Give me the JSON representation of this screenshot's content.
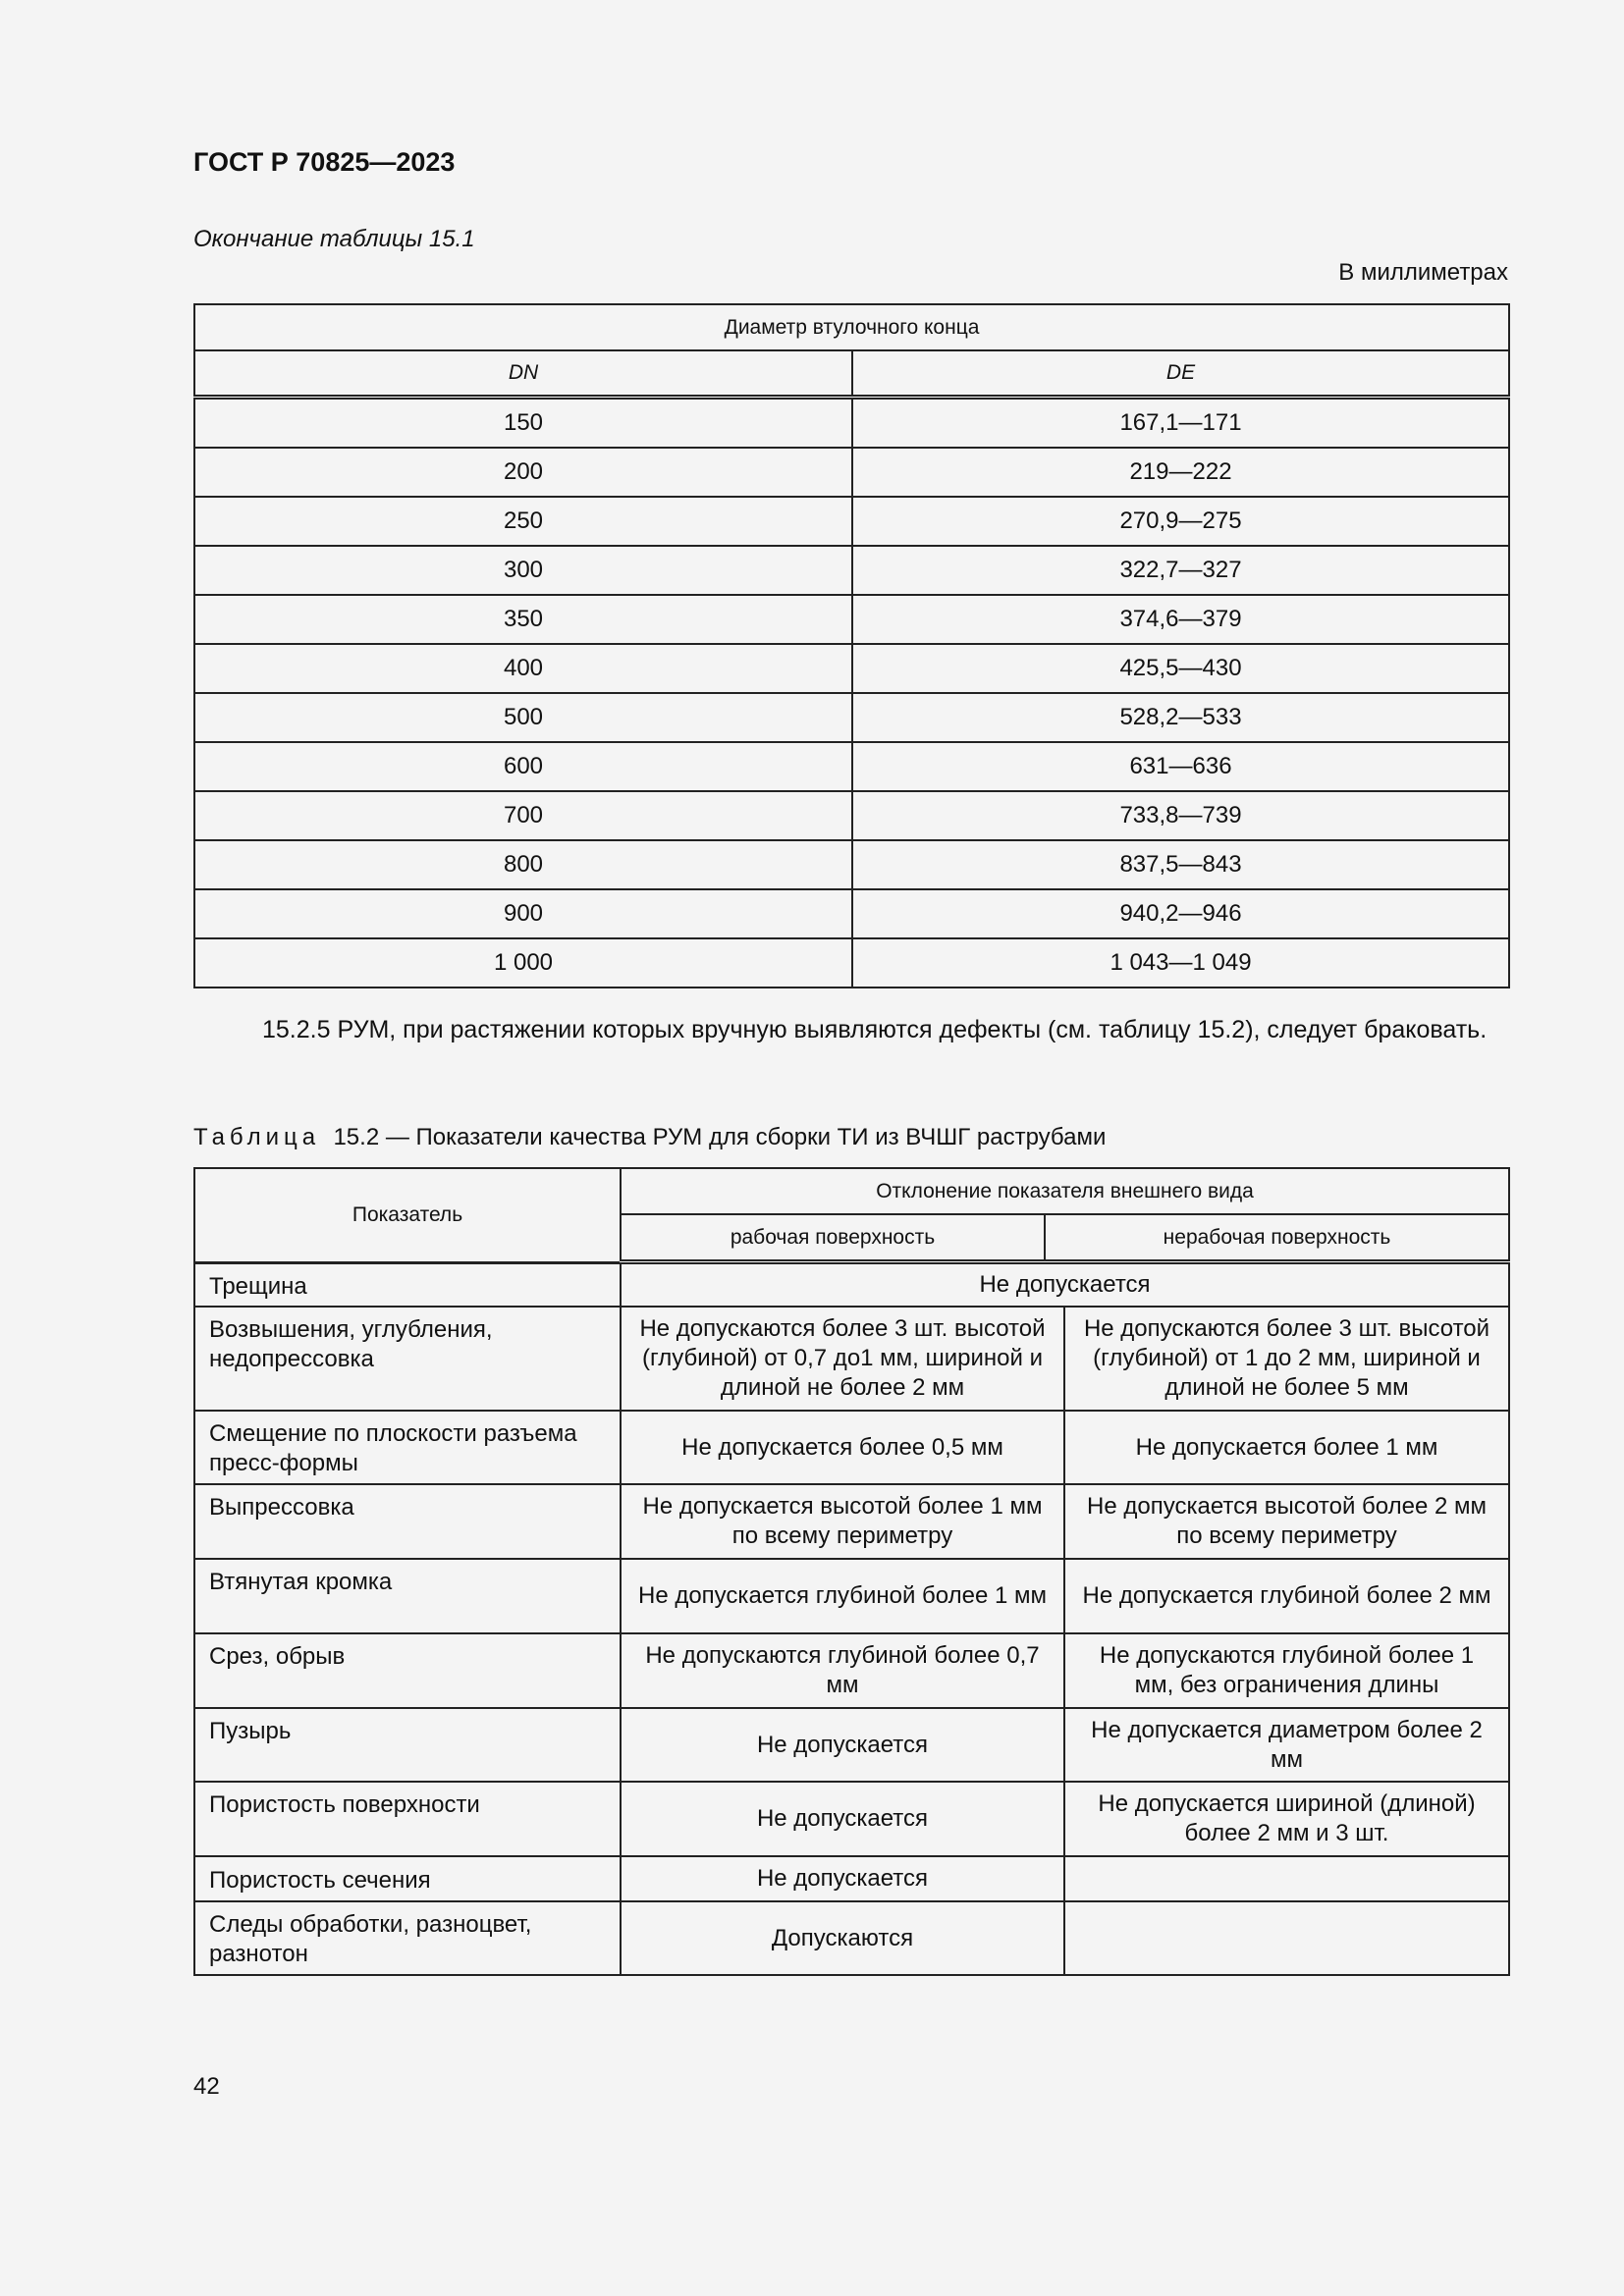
{
  "header": {
    "doc_id": "ГОСТ Р 70825—2023"
  },
  "table1": {
    "continuation": "Окончание таблицы 15.1",
    "units": "В миллиметрах",
    "group_header": "Диаметр втулочного конца",
    "columns": [
      "DN",
      "DE"
    ],
    "rows": [
      [
        "150",
        "167,1—171"
      ],
      [
        "200",
        "219—222"
      ],
      [
        "250",
        "270,9—275"
      ],
      [
        "300",
        "322,7—327"
      ],
      [
        "350",
        "374,6—379"
      ],
      [
        "400",
        "425,5—430"
      ],
      [
        "500",
        "528,2—533"
      ],
      [
        "600",
        "631—636"
      ],
      [
        "700",
        "733,8—739"
      ],
      [
        "800",
        "837,5—843"
      ],
      [
        "900",
        "940,2—946"
      ],
      [
        "1 000",
        "1 043—1 049"
      ]
    ]
  },
  "paragraph": "15.2.5 РУМ, при растяжении которых вручную выявляются дефекты (см. таблицу 15.2), следует браковать.",
  "table2": {
    "caption_prefix": "Таблица",
    "caption": "15.2 — Показатели качества РУМ для сборки ТИ из ВЧШГ раструбами",
    "col_indicator": "Показатель",
    "col_group": "Отклонение показателя внешнего вида",
    "col_working": "рабочая поверхность",
    "col_nonworking": "нерабочая поверхность",
    "rows": [
      {
        "name": "Трещина",
        "merged": "Не допускается"
      },
      {
        "name": "Возвышения, углубления, недопрессовка",
        "working": "Не допускаются более 3 шт. высотой (глубиной) от 0,7 до1 мм, шириной и длиной не более 2 мм",
        "nonworking": "Не допускаются более 3 шт. высотой (глубиной) от 1 до 2 мм, шириной и длиной не более 5 мм"
      },
      {
        "name": "Смещение по плоскости разъема пресс-формы",
        "working": "Не допускается более 0,5 мм",
        "nonworking": "Не допускается более 1 мм"
      },
      {
        "name": "Выпрессовка",
        "working": "Не допускается высотой более 1 мм по всему периметру",
        "nonworking": "Не допускается высотой более 2 мм по всему периметру"
      },
      {
        "name": "Втянутая кромка",
        "working": "Не допускается глубиной более 1 мм",
        "nonworking": "Не допускается глубиной более 2 мм"
      },
      {
        "name": "Срез, обрыв",
        "working": "Не допускаются глубиной более 0,7 мм",
        "nonworking": "Не допускаются глубиной более 1 мм, без ограничения длины"
      },
      {
        "name": "Пузырь",
        "working": "Не допускается",
        "nonworking": "Не допускается диаметром более 2 мм"
      },
      {
        "name": "Пористость поверхности",
        "working": "Не допускается",
        "nonworking": "Не допускается шириной (длиной) более 2 мм и 3 шт."
      },
      {
        "name": "Пористость сечения",
        "working": "Не допускается",
        "nonworking": ""
      },
      {
        "name": "Следы обработки, разноцвет, разнотон",
        "working": "Допускаются",
        "nonworking": ""
      }
    ]
  },
  "footer": {
    "page_number": "42"
  }
}
